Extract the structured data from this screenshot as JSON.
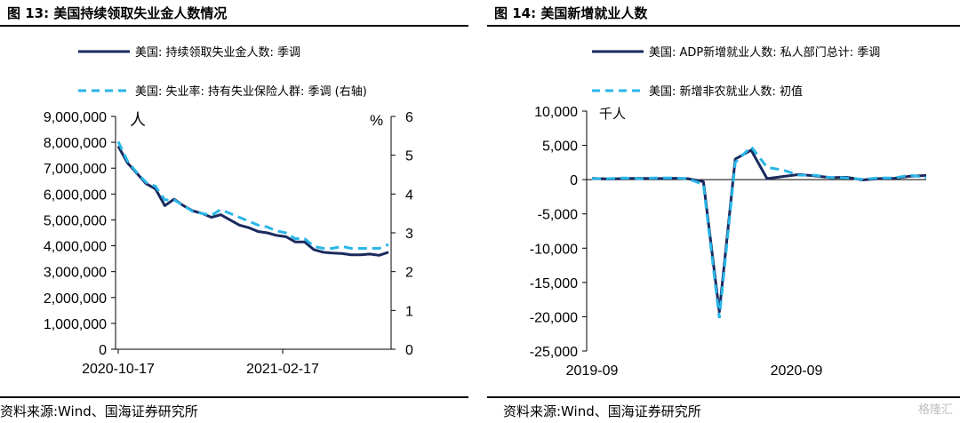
{
  "left": {
    "title": "图 13:  美国持续领取失业金人数情况",
    "legend": [
      {
        "label": "美国: 持续领取失业金人数: 季调",
        "color": "#1a2a5e",
        "style": "solid"
      },
      {
        "label": "美国: 失业率: 持有失业保险人群: 季调 (右轴)",
        "color": "#29b6e8",
        "style": "dashed"
      }
    ],
    "unit_left": "人",
    "unit_right": "%",
    "source": "资料来源:Wind、国海证券研究所"
  },
  "right": {
    "title": "图 14:  美国新增就业人数",
    "legend": [
      {
        "label": "美国: ADP新增就业人数: 私人部门总计: 季调",
        "color": "#1a2a5e",
        "style": "solid"
      },
      {
        "label": "美国: 新增非农就业人数: 初值",
        "color": "#29b6e8",
        "style": "dashed"
      }
    ],
    "unit": "千人",
    "source": "资料来源:Wind、国海证券研究所"
  },
  "watermark": "格隆汇",
  "chart_data": [
    {
      "type": "line",
      "title": "图 13:  美国持续领取失业金人数情况",
      "x_tick_labels": [
        "2020-10-17",
        "2021-02-17"
      ],
      "y_left": {
        "range": [
          0,
          9000000
        ],
        "ticks": [
          0,
          1000000,
          2000000,
          3000000,
          4000000,
          5000000,
          6000000,
          7000000,
          8000000,
          9000000
        ],
        "tick_labels": [
          "0",
          "1,000,000",
          "2,000,000",
          "3,000,000",
          "4,000,000",
          "5,000,000",
          "6,000,000",
          "7,000,000",
          "8,000,000",
          "9,000,000"
        ]
      },
      "y_right": {
        "range": [
          0,
          6
        ],
        "ticks": [
          0,
          1,
          2,
          3,
          4,
          5,
          6
        ],
        "tick_labels": [
          "0",
          "1",
          "2",
          "3",
          "4",
          "5",
          "6"
        ]
      },
      "series": [
        {
          "name": "美国: 持续领取失业金人数: 季调",
          "axis": "left",
          "values": [
            7850000,
            7200000,
            6800000,
            6400000,
            6200000,
            5550000,
            5800000,
            5550000,
            5350000,
            5250000,
            5100000,
            5200000,
            5000000,
            4800000,
            4700000,
            4550000,
            4500000,
            4400000,
            4350000,
            4150000,
            4150000,
            3850000,
            3750000,
            3720000,
            3700000,
            3650000,
            3650000,
            3680000,
            3630000,
            3750000
          ]
        },
        {
          "name": "美国: 失业率: 持有失业保险人群: 季调 (右轴)",
          "axis": "right",
          "values": [
            5.35,
            4.85,
            4.55,
            4.3,
            4.2,
            3.85,
            3.85,
            3.7,
            3.55,
            3.5,
            3.45,
            3.6,
            3.5,
            3.4,
            3.3,
            3.2,
            3.15,
            3.05,
            3.0,
            2.85,
            2.85,
            2.65,
            2.6,
            2.6,
            2.65,
            2.6,
            2.6,
            2.6,
            2.6,
            2.7
          ]
        }
      ]
    },
    {
      "type": "line",
      "title": "图 14:  美国新增就业人数",
      "x_tick_labels": [
        "2019-09",
        "2020-09"
      ],
      "y": {
        "range": [
          -25000,
          10000
        ],
        "ticks": [
          -25000,
          -20000,
          -15000,
          -10000,
          -5000,
          0,
          5000,
          10000
        ],
        "tick_labels": [
          "-25,000",
          "-20,000",
          "-15,000",
          "-10,000",
          "-5,000",
          "0",
          "5,000",
          "10,000"
        ]
      },
      "series": [
        {
          "name": "美国: ADP新增就业人数: 私人部门总计: 季调",
          "values": [
            200,
            100,
            150,
            200,
            150,
            200,
            150,
            -300,
            -19300,
            3000,
            4300,
            150,
            450,
            750,
            550,
            300,
            350,
            -50,
            150,
            200,
            500,
            600
          ]
        },
        {
          "name": "美国: 新增非农就业人数: 初值",
          "values": [
            150,
            150,
            250,
            150,
            250,
            250,
            150,
            -700,
            -20200,
            2500,
            4800,
            1800,
            1400,
            650,
            650,
            300,
            250,
            50,
            250,
            250,
            650,
            300
          ]
        }
      ]
    }
  ]
}
